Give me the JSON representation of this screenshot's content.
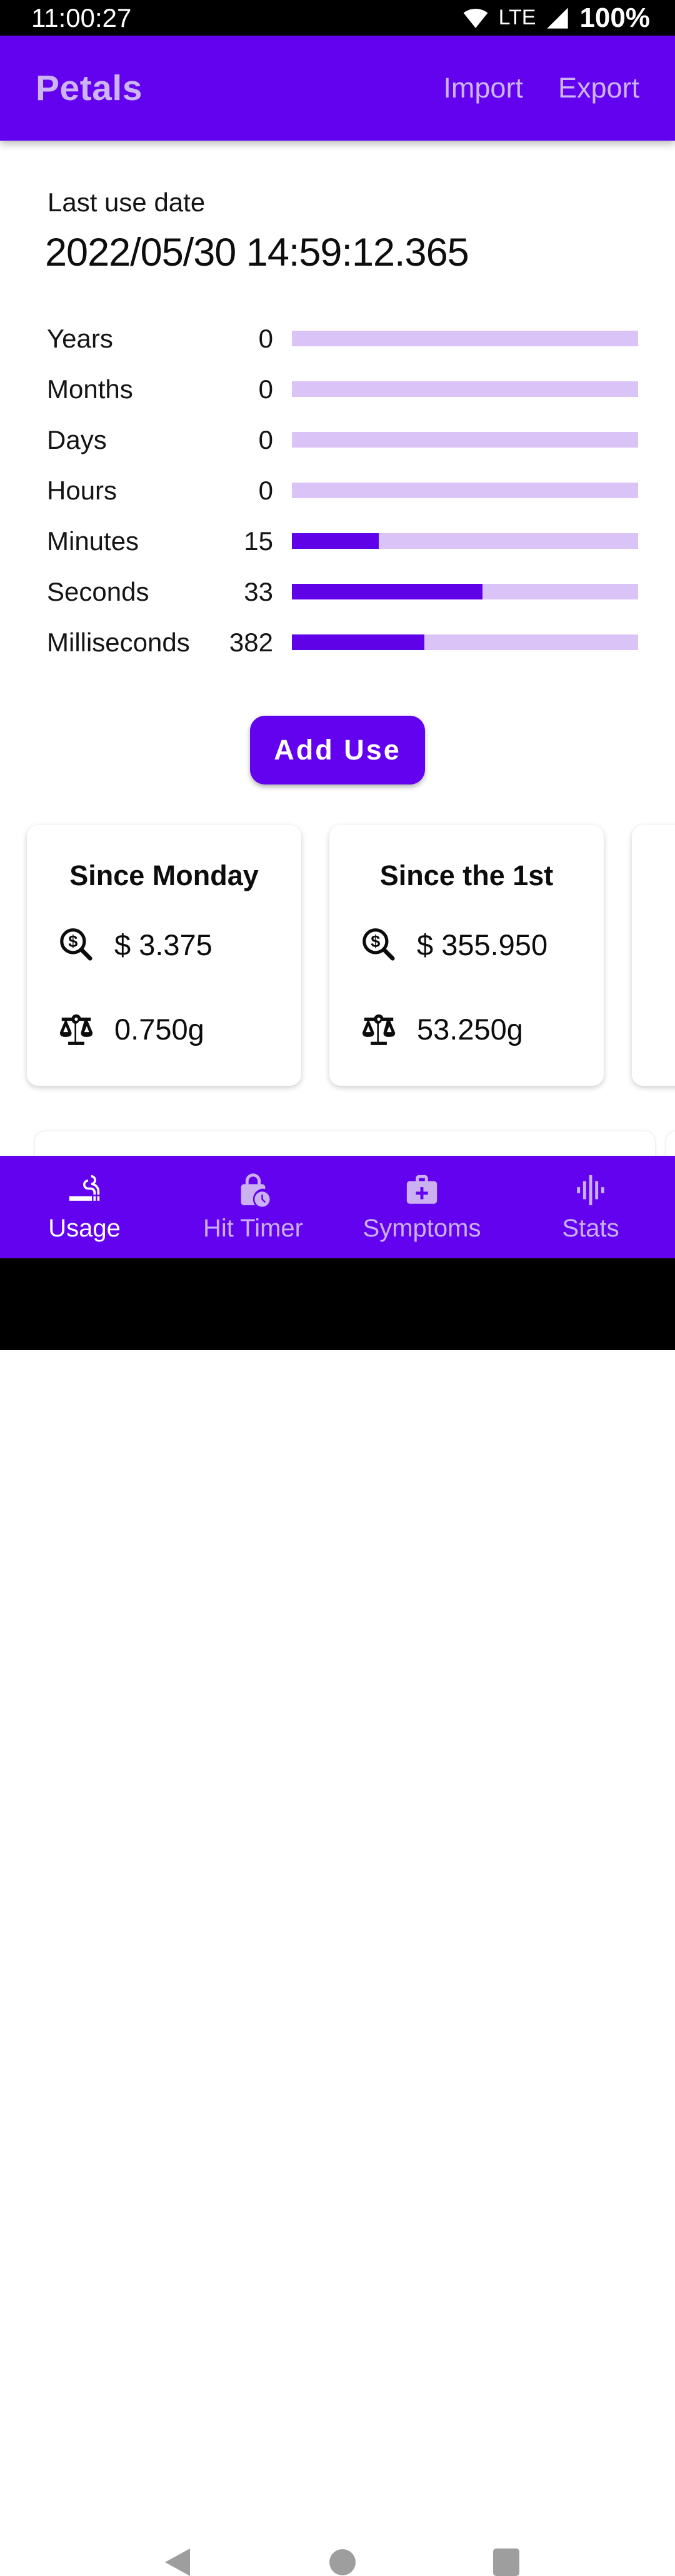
{
  "status_bar": {
    "time": "11:00:27",
    "network_type": "LTE",
    "battery": "100%"
  },
  "app_bar": {
    "title": "Petals",
    "import_label": "Import",
    "export_label": "Export"
  },
  "usage": {
    "last_use_label": "Last use date",
    "last_use_datetime": "2022/05/30 14:59:12.365",
    "elapsed_rows": [
      {
        "label": "Years",
        "value": 0,
        "max": 1
      },
      {
        "label": "Months",
        "value": 0,
        "max": 12
      },
      {
        "label": "Days",
        "value": 0,
        "max": 31
      },
      {
        "label": "Hours",
        "value": 0,
        "max": 24
      },
      {
        "label": "Minutes",
        "value": 15,
        "max": 60
      },
      {
        "label": "Seconds",
        "value": 33,
        "max": 60
      },
      {
        "label": "Milliseconds",
        "value": 382,
        "max": 1000
      }
    ],
    "add_use_label": "Add Use",
    "cards": [
      {
        "title": "Since Monday",
        "money": "$ 3.375",
        "weight": "0.750g"
      },
      {
        "title": "Since the 1st",
        "money": "$ 355.950",
        "weight": "53.250g"
      }
    ]
  },
  "bottom_nav": {
    "items": [
      {
        "label": "Usage",
        "icon": "smoking-icon",
        "active": true
      },
      {
        "label": "Hit Timer",
        "icon": "lock-clock-icon",
        "active": false
      },
      {
        "label": "Symptoms",
        "icon": "medical-bag-icon",
        "active": false
      },
      {
        "label": "Stats",
        "icon": "waveform-icon",
        "active": false
      }
    ]
  },
  "colors": {
    "primary": "#6302EE",
    "progress_fill": "#6002E8",
    "progress_track": "#D9C3F7",
    "appbar_text": "#CDB4F2",
    "nav_inactive_text": "#CBB1F2",
    "android_nav_icon": "#9E9E9E"
  }
}
